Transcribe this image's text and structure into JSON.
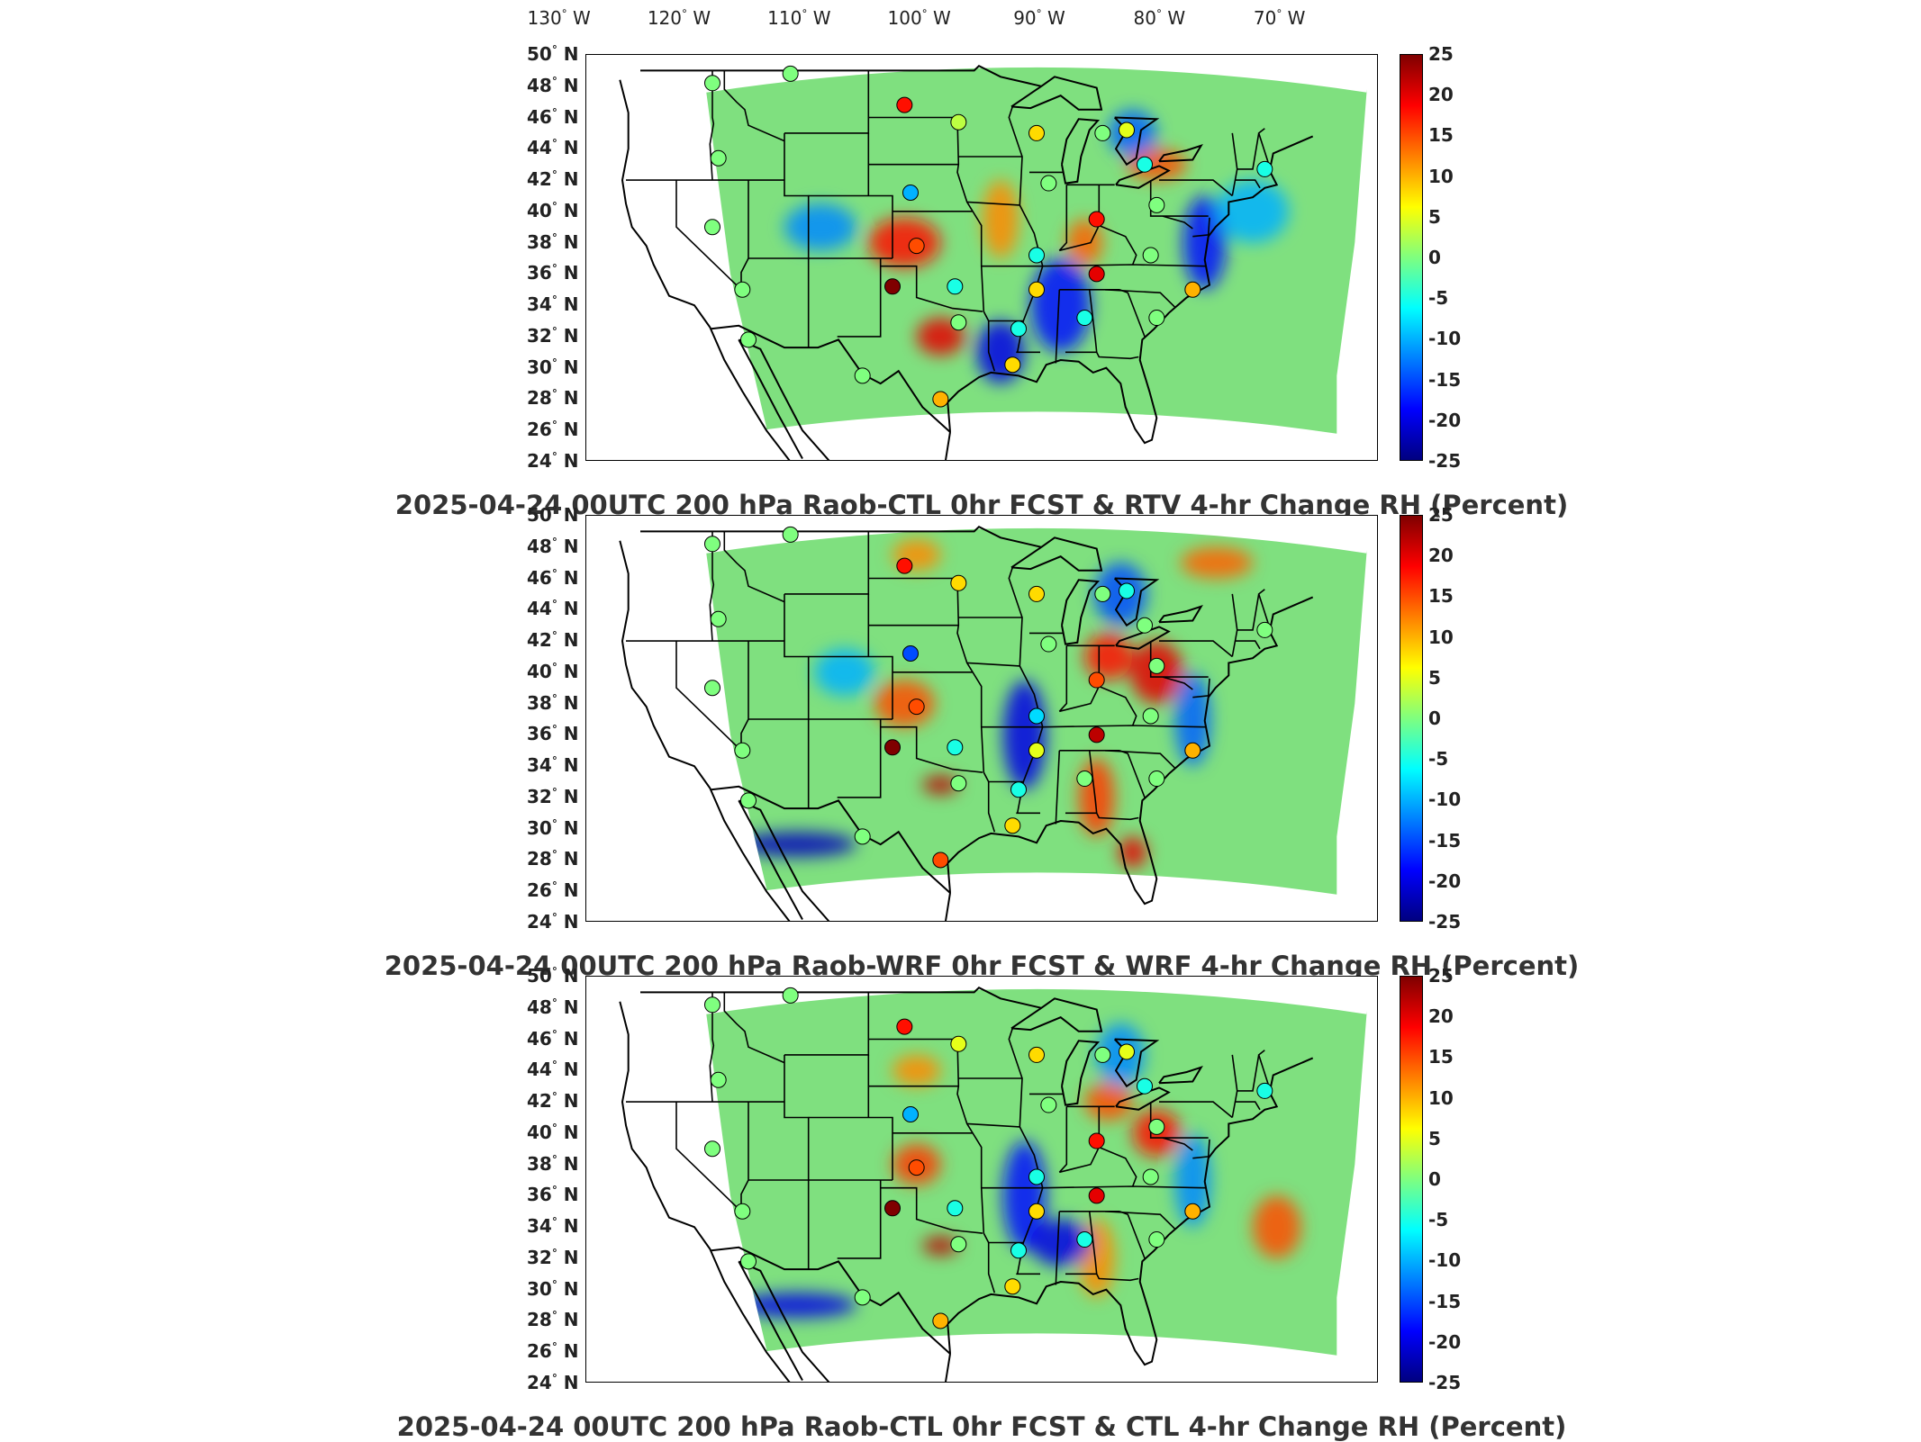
{
  "lon_labels": [
    "130",
    "120",
    "110",
    "100",
    "90",
    "80",
    "70"
  ],
  "lon_suffix": "W",
  "lat_labels": [
    "50",
    "48",
    "46",
    "44",
    "42",
    "40",
    "38",
    "36",
    "34",
    "32",
    "30",
    "28",
    "26",
    "24"
  ],
  "lat_suffix": "N",
  "degree_symbol": "°",
  "colorbar_ticks": [
    "25",
    "20",
    "15",
    "10",
    "5",
    "0",
    "-5",
    "-10",
    "-15",
    "-20",
    "-25"
  ],
  "colorbar_range": [
    -25,
    25
  ],
  "colors": {
    "field_base": "#7fe07f",
    "warm": "#ff7f00",
    "hot": "#d40000",
    "cool": "#00bfff",
    "cold": "#1e3cff",
    "outline": "#000000"
  },
  "panels": [
    {
      "title": "2025-04-24 00UTC 200 hPa Raob-CTL 0hr FCST & RTV 4-hr Change RH (Percent)",
      "stations": [
        {
          "lon": -117.0,
          "lat": 48.2,
          "value": 0
        },
        {
          "lon": -110.5,
          "lat": 48.8,
          "value": 0
        },
        {
          "lon": -101.0,
          "lat": 46.8,
          "value": 18
        },
        {
          "lon": -96.5,
          "lat": 45.7,
          "value": 3
        },
        {
          "lon": -90.0,
          "lat": 45.0,
          "value": 8
        },
        {
          "lon": -84.5,
          "lat": 45.0,
          "value": 0
        },
        {
          "lon": -82.5,
          "lat": 45.2,
          "value": 5
        },
        {
          "lon": -116.5,
          "lat": 43.4,
          "value": 0
        },
        {
          "lon": -100.5,
          "lat": 41.2,
          "value": -10
        },
        {
          "lon": -89.0,
          "lat": 41.8,
          "value": 0
        },
        {
          "lon": -81.0,
          "lat": 43.0,
          "value": -5
        },
        {
          "lon": -71.0,
          "lat": 42.7,
          "value": -5
        },
        {
          "lon": -80.0,
          "lat": 40.4,
          "value": 0
        },
        {
          "lon": -85.0,
          "lat": 39.5,
          "value": 18
        },
        {
          "lon": -117.0,
          "lat": 39.0,
          "value": 0
        },
        {
          "lon": -100.0,
          "lat": 37.8,
          "value": 15
        },
        {
          "lon": -90.0,
          "lat": 37.2,
          "value": -5
        },
        {
          "lon": -80.5,
          "lat": 37.2,
          "value": 0
        },
        {
          "lon": -114.5,
          "lat": 35.0,
          "value": 0
        },
        {
          "lon": -102.0,
          "lat": 35.2,
          "value": 25
        },
        {
          "lon": -96.8,
          "lat": 35.2,
          "value": -5
        },
        {
          "lon": -90.0,
          "lat": 35.0,
          "value": 8
        },
        {
          "lon": -85.0,
          "lat": 36.0,
          "value": 20
        },
        {
          "lon": -77.0,
          "lat": 35.0,
          "value": 10
        },
        {
          "lon": -96.5,
          "lat": 32.9,
          "value": 0
        },
        {
          "lon": -91.5,
          "lat": 32.5,
          "value": -5
        },
        {
          "lon": -86.0,
          "lat": 33.2,
          "value": -5
        },
        {
          "lon": -80.0,
          "lat": 33.2,
          "value": 0
        },
        {
          "lon": -114.0,
          "lat": 31.8,
          "value": 0
        },
        {
          "lon": -104.5,
          "lat": 29.5,
          "value": 0
        },
        {
          "lon": -98.0,
          "lat": 28.0,
          "value": 10
        },
        {
          "lon": -92.0,
          "lat": 30.2,
          "value": 8
        }
      ]
    },
    {
      "title": "2025-04-24 00UTC 200 hPa Raob-WRF 0hr FCST & WRF 4-hr Change RH (Percent)",
      "stations": [
        {
          "lon": -117.0,
          "lat": 48.2,
          "value": 0
        },
        {
          "lon": -110.5,
          "lat": 48.8,
          "value": 0
        },
        {
          "lon": -101.0,
          "lat": 46.8,
          "value": 18
        },
        {
          "lon": -96.5,
          "lat": 45.7,
          "value": 8
        },
        {
          "lon": -90.0,
          "lat": 45.0,
          "value": 8
        },
        {
          "lon": -84.5,
          "lat": 45.0,
          "value": 0
        },
        {
          "lon": -82.5,
          "lat": 45.2,
          "value": -5
        },
        {
          "lon": -116.5,
          "lat": 43.4,
          "value": 0
        },
        {
          "lon": -100.5,
          "lat": 41.2,
          "value": -15
        },
        {
          "lon": -89.0,
          "lat": 41.8,
          "value": 0
        },
        {
          "lon": -81.0,
          "lat": 43.0,
          "value": 0
        },
        {
          "lon": -71.0,
          "lat": 42.7,
          "value": 0
        },
        {
          "lon": -80.0,
          "lat": 40.4,
          "value": 0
        },
        {
          "lon": -85.0,
          "lat": 39.5,
          "value": 15
        },
        {
          "lon": -117.0,
          "lat": 39.0,
          "value": 0
        },
        {
          "lon": -100.0,
          "lat": 37.8,
          "value": 15
        },
        {
          "lon": -90.0,
          "lat": 37.2,
          "value": -8
        },
        {
          "lon": -80.5,
          "lat": 37.2,
          "value": 0
        },
        {
          "lon": -114.5,
          "lat": 35.0,
          "value": 0
        },
        {
          "lon": -102.0,
          "lat": 35.2,
          "value": 25
        },
        {
          "lon": -96.8,
          "lat": 35.2,
          "value": -5
        },
        {
          "lon": -90.0,
          "lat": 35.0,
          "value": 5
        },
        {
          "lon": -85.0,
          "lat": 36.0,
          "value": 22
        },
        {
          "lon": -77.0,
          "lat": 35.0,
          "value": 10
        },
        {
          "lon": -96.5,
          "lat": 32.9,
          "value": 0
        },
        {
          "lon": -91.5,
          "lat": 32.5,
          "value": -5
        },
        {
          "lon": -86.0,
          "lat": 33.2,
          "value": 0
        },
        {
          "lon": -80.0,
          "lat": 33.2,
          "value": 0
        },
        {
          "lon": -114.0,
          "lat": 31.8,
          "value": 0
        },
        {
          "lon": -104.5,
          "lat": 29.5,
          "value": 0
        },
        {
          "lon": -98.0,
          "lat": 28.0,
          "value": 15
        },
        {
          "lon": -92.0,
          "lat": 30.2,
          "value": 8
        }
      ]
    },
    {
      "title": "2025-04-24 00UTC 200 hPa Raob-CTL 0hr FCST & CTL 4-hr Change RH (Percent)",
      "stations": [
        {
          "lon": -117.0,
          "lat": 48.2,
          "value": 0
        },
        {
          "lon": -110.5,
          "lat": 48.8,
          "value": 0
        },
        {
          "lon": -101.0,
          "lat": 46.8,
          "value": 18
        },
        {
          "lon": -96.5,
          "lat": 45.7,
          "value": 5
        },
        {
          "lon": -90.0,
          "lat": 45.0,
          "value": 8
        },
        {
          "lon": -84.5,
          "lat": 45.0,
          "value": 0
        },
        {
          "lon": -82.5,
          "lat": 45.2,
          "value": 5
        },
        {
          "lon": -116.5,
          "lat": 43.4,
          "value": 0
        },
        {
          "lon": -100.5,
          "lat": 41.2,
          "value": -10
        },
        {
          "lon": -89.0,
          "lat": 41.8,
          "value": 0
        },
        {
          "lon": -81.0,
          "lat": 43.0,
          "value": -5
        },
        {
          "lon": -71.0,
          "lat": 42.7,
          "value": -5
        },
        {
          "lon": -80.0,
          "lat": 40.4,
          "value": 0
        },
        {
          "lon": -85.0,
          "lat": 39.5,
          "value": 18
        },
        {
          "lon": -117.0,
          "lat": 39.0,
          "value": 0
        },
        {
          "lon": -100.0,
          "lat": 37.8,
          "value": 15
        },
        {
          "lon": -90.0,
          "lat": 37.2,
          "value": -5
        },
        {
          "lon": -80.5,
          "lat": 37.2,
          "value": 0
        },
        {
          "lon": -114.5,
          "lat": 35.0,
          "value": 0
        },
        {
          "lon": -102.0,
          "lat": 35.2,
          "value": 25
        },
        {
          "lon": -96.8,
          "lat": 35.2,
          "value": -5
        },
        {
          "lon": -90.0,
          "lat": 35.0,
          "value": 8
        },
        {
          "lon": -85.0,
          "lat": 36.0,
          "value": 20
        },
        {
          "lon": -77.0,
          "lat": 35.0,
          "value": 10
        },
        {
          "lon": -96.5,
          "lat": 32.9,
          "value": 0
        },
        {
          "lon": -91.5,
          "lat": 32.5,
          "value": -5
        },
        {
          "lon": -86.0,
          "lat": 33.2,
          "value": -5
        },
        {
          "lon": -80.0,
          "lat": 33.2,
          "value": 0
        },
        {
          "lon": -114.0,
          "lat": 31.8,
          "value": 0
        },
        {
          "lon": -104.5,
          "lat": 29.5,
          "value": 0
        },
        {
          "lon": -98.0,
          "lat": 28.0,
          "value": 10
        },
        {
          "lon": -92.0,
          "lat": 30.2,
          "value": 8
        }
      ]
    }
  ]
}
